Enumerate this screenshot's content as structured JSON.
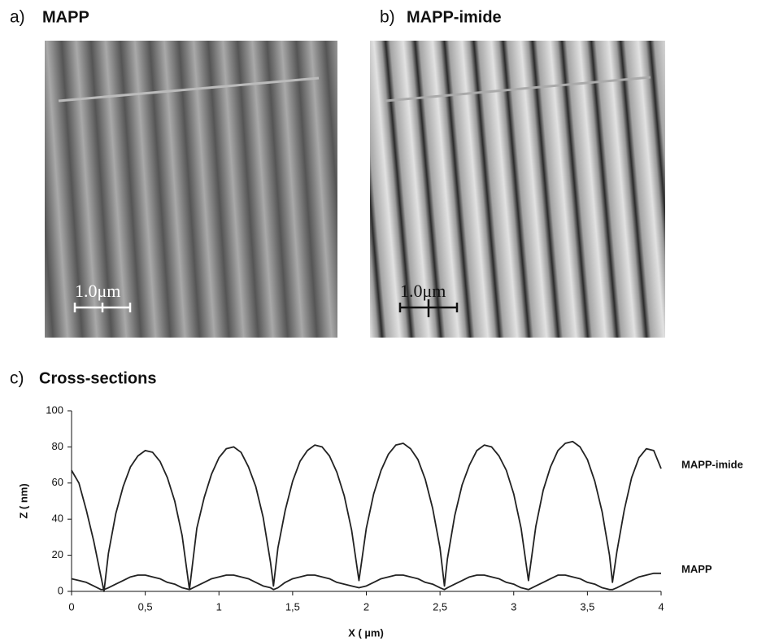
{
  "figure": {
    "panels": [
      {
        "label": "a)",
        "title": "MAPP",
        "scale_bar": "1.0μm"
      },
      {
        "label": "b)",
        "title": "MAPP-imide",
        "scale_bar": "1.0μm"
      }
    ]
  },
  "chart_data": {
    "type": "line",
    "label": "c)",
    "title": "Cross-sections",
    "x_label": "X ( µm)",
    "y_label": "Z ( nm)",
    "x": [
      0,
      0.05,
      0.1,
      0.15,
      0.2,
      0.22,
      0.25,
      0.3,
      0.35,
      0.4,
      0.45,
      0.5,
      0.55,
      0.6,
      0.65,
      0.7,
      0.75,
      0.8,
      0.85,
      0.9,
      0.95,
      1,
      1.05,
      1.1,
      1.15,
      1.2,
      1.25,
      1.3,
      1.35,
      1.37,
      1.4,
      1.45,
      1.5,
      1.55,
      1.6,
      1.65,
      1.7,
      1.75,
      1.8,
      1.85,
      1.9,
      1.95,
      2,
      2.05,
      2.1,
      2.15,
      2.2,
      2.25,
      2.3,
      2.35,
      2.4,
      2.45,
      2.5,
      2.53,
      2.55,
      2.6,
      2.65,
      2.7,
      2.75,
      2.8,
      2.85,
      2.9,
      2.95,
      3,
      3.05,
      3.1,
      3.15,
      3.2,
      3.25,
      3.3,
      3.35,
      3.4,
      3.45,
      3.5,
      3.55,
      3.6,
      3.65,
      3.67,
      3.7,
      3.75,
      3.8,
      3.85,
      3.9,
      3.95,
      4
    ],
    "series": [
      {
        "name": "MAPP-imide",
        "color": "#222222",
        "values": [
          67,
          60,
          45,
          28,
          8,
          0,
          21,
          43,
          58,
          69,
          75,
          78,
          77,
          72,
          63,
          50,
          31,
          1,
          35,
          52,
          65,
          74,
          79,
          80,
          77,
          69,
          58,
          41,
          16,
          3,
          24,
          45,
          61,
          72,
          78,
          81,
          80,
          75,
          66,
          53,
          34,
          6,
          35,
          54,
          67,
          76,
          81,
          82,
          79,
          73,
          62,
          46,
          24,
          3,
          18,
          42,
          59,
          70,
          78,
          81,
          80,
          75,
          67,
          54,
          35,
          6,
          36,
          56,
          69,
          78,
          82,
          83,
          80,
          73,
          61,
          44,
          20,
          5,
          22,
          45,
          63,
          74,
          79,
          78,
          68
        ]
      },
      {
        "name": "MAPP",
        "color": "#222222",
        "values": [
          7,
          6,
          5,
          3,
          1,
          1,
          2,
          4,
          6,
          8,
          9,
          9,
          8,
          7,
          5,
          4,
          2,
          1,
          3,
          5,
          7,
          8,
          9,
          9,
          8,
          7,
          5,
          3,
          2,
          1,
          2,
          5,
          7,
          8,
          9,
          9,
          8,
          7,
          5,
          4,
          3,
          2,
          3,
          5,
          7,
          8,
          9,
          9,
          8,
          7,
          5,
          4,
          2,
          1,
          2,
          4,
          6,
          8,
          9,
          9,
          8,
          7,
          5,
          4,
          2,
          1,
          3,
          5,
          7,
          9,
          9,
          8,
          7,
          5,
          4,
          2,
          1,
          1,
          2,
          4,
          6,
          8,
          9,
          10,
          10
        ]
      }
    ],
    "xlim": [
      0,
      4
    ],
    "ylim": [
      0,
      100
    ],
    "xticks": [
      0,
      {
        "value": 0.5,
        "label": "0,5"
      },
      1,
      {
        "value": 1.5,
        "label": "1,5"
      },
      2,
      {
        "value": 2.5,
        "label": "2,5"
      },
      3,
      {
        "value": 3.5,
        "label": "3,5"
      },
      4
    ],
    "yticks": [
      0,
      20,
      40,
      60,
      80,
      100
    ]
  }
}
